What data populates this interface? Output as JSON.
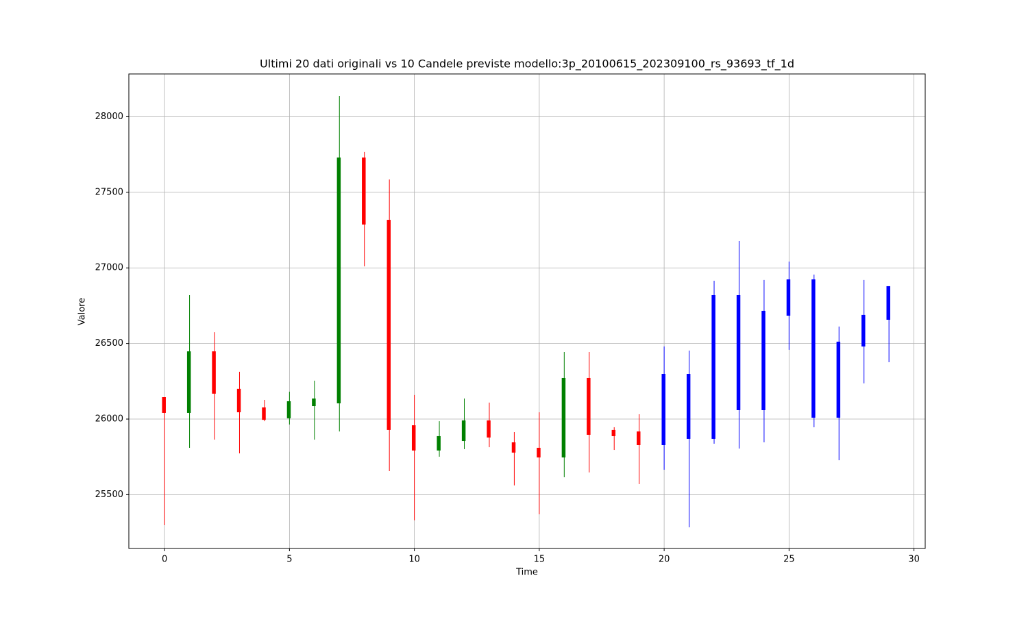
{
  "chart_data": {
    "type": "candlestick",
    "title": "Ultimi 20 dati originali vs 10 Candele previste modello:3p_20100615_202309100_rs_93693_tf_1d",
    "xlabel": "Time",
    "ylabel": "Valore",
    "xlim": [
      -1.43,
      30.45
    ],
    "xticks": [
      0,
      5,
      10,
      15,
      20,
      25,
      30
    ],
    "ylim": [
      25144,
      28283
    ],
    "yticks": [
      25500,
      26000,
      26500,
      27000,
      27500,
      28000
    ],
    "grid": true,
    "series": [
      {
        "up_color": "green",
        "down_color": "red",
        "x": [
          0,
          1,
          2,
          3,
          4,
          5,
          6,
          7,
          8,
          9,
          10,
          11,
          12,
          13,
          14,
          15,
          16,
          17,
          18,
          19
        ],
        "open": [
          26145,
          26041,
          26448,
          26200,
          26077,
          26005,
          26086,
          26104,
          27730,
          27318,
          25959,
          25792,
          25855,
          25991,
          25846,
          25810,
          25746,
          26272,
          25928,
          25918
        ],
        "high": [
          26145,
          26820,
          26575,
          26313,
          26127,
          26181,
          26254,
          28138,
          27767,
          27585,
          26159,
          25986,
          26136,
          26109,
          25914,
          26045,
          26444,
          26444,
          25946,
          26032
        ],
        "low": [
          25298,
          25810,
          25864,
          25773,
          25986,
          25964,
          25864,
          25918,
          27010,
          25656,
          25330,
          25751,
          25801,
          25814,
          25561,
          25370,
          25615,
          25647,
          25796,
          25570
        ],
        "close": [
          26041,
          26448,
          26168,
          26045,
          25995,
          26118,
          26136,
          27730,
          27287,
          25928,
          25792,
          25887,
          25991,
          25878,
          25778,
          25746,
          26272,
          25896,
          25887,
          25828
        ]
      },
      {
        "color": "blue",
        "x": [
          20,
          21,
          22,
          23,
          24,
          25,
          26,
          27,
          28,
          29
        ],
        "open": [
          25828,
          26299,
          25869,
          26820,
          26059,
          26684,
          26924,
          26009,
          26480,
          26657
        ],
        "high": [
          26480,
          26453,
          26915,
          27178,
          26920,
          27042,
          26956,
          26612,
          26920,
          26879
        ],
        "low": [
          25665,
          25284,
          25837,
          25805,
          25846,
          26458,
          25946,
          25728,
          26236,
          26376
        ],
        "close": [
          26299,
          25869,
          26820,
          26059,
          26716,
          26924,
          26009,
          26512,
          26689,
          26879
        ]
      }
    ]
  }
}
